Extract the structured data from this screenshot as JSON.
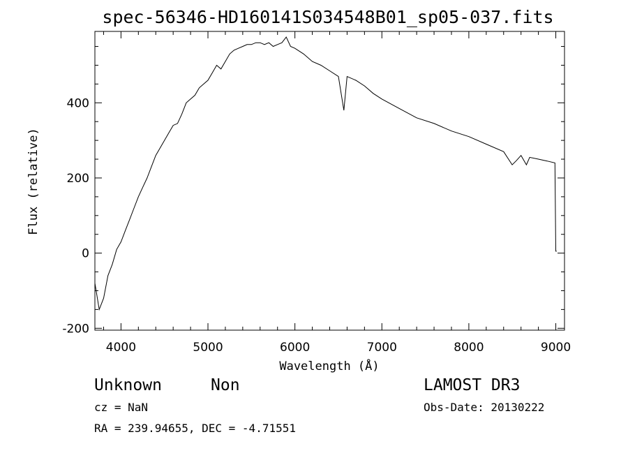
{
  "chart_data": {
    "type": "line",
    "title": "spec-56346-HD160141S034548B01_sp05-037.fits",
    "xlabel": "Wavelength (Å)",
    "ylabel": "Flux (relative)",
    "xlim": [
      3700,
      9100
    ],
    "ylim": [
      -205,
      590
    ],
    "x_ticks": [
      4000,
      5000,
      6000,
      7000,
      8000,
      9000
    ],
    "y_ticks": [
      -200,
      0,
      200,
      400
    ],
    "grid": false,
    "series": [
      {
        "x": [
          3700,
          3750,
          3800,
          3850,
          3900,
          3950,
          4000,
          4050,
          4100,
          4150,
          4200,
          4250,
          4300,
          4350,
          4400,
          4450,
          4500,
          4550,
          4600,
          4650,
          4700,
          4750,
          4800,
          4850,
          4900,
          4950,
          5000,
          5050,
          5100,
          5150,
          5200,
          5250,
          5300,
          5350,
          5400,
          5450,
          5500,
          5550,
          5600,
          5650,
          5700,
          5750,
          5800,
          5850,
          5900,
          5950,
          6000,
          6100,
          6200,
          6300,
          6400,
          6500,
          6563,
          6600,
          6700,
          6800,
          6900,
          7000,
          7200,
          7400,
          7600,
          7800,
          8000,
          8200,
          8400,
          8498,
          8542,
          8600,
          8662,
          8700,
          8800,
          8900,
          8990,
          9000,
          9010
        ],
        "values": [
          -80,
          -150,
          -120,
          -60,
          -30,
          10,
          30,
          60,
          90,
          120,
          150,
          175,
          200,
          230,
          260,
          280,
          300,
          320,
          340,
          345,
          370,
          400,
          410,
          420,
          440,
          450,
          460,
          480,
          500,
          490,
          510,
          530,
          540,
          545,
          550,
          555,
          555,
          560,
          560,
          555,
          560,
          550,
          555,
          560,
          575,
          550,
          545,
          530,
          510,
          500,
          485,
          470,
          380,
          470,
          460,
          445,
          425,
          410,
          385,
          360,
          345,
          325,
          310,
          290,
          270,
          235,
          245,
          260,
          235,
          255,
          250,
          245,
          240,
          5,
          5
        ]
      }
    ]
  },
  "labels": {
    "object_class": "Unknown",
    "object_subclass": "Non",
    "survey": "LAMOST DR3",
    "cz": "cz = NaN",
    "obs_date": "Obs-Date: 20130222",
    "coords": "RA = 239.94655, DEC =  -4.71551"
  }
}
